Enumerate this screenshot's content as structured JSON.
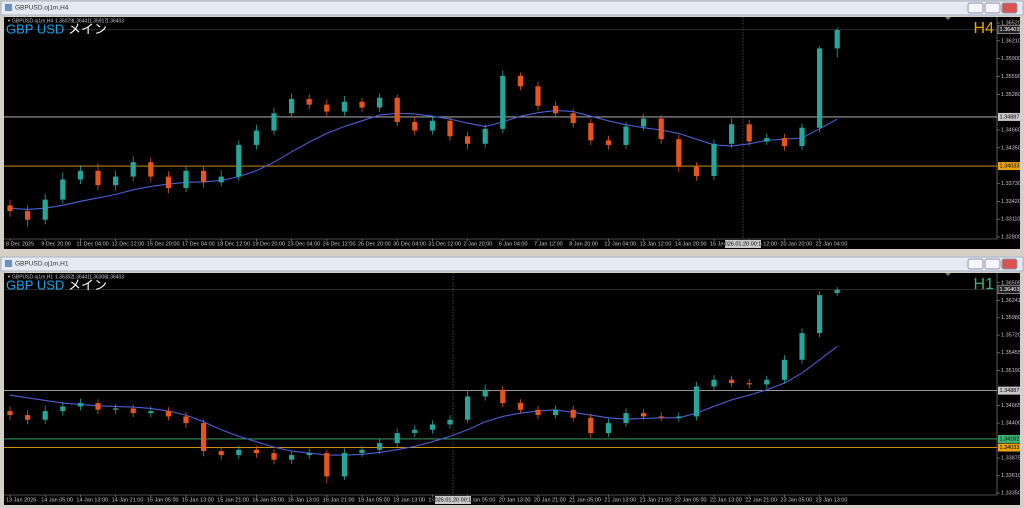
{
  "chart_data": [
    {
      "type": "candlestick",
      "window_title": "GBPUSD.oj1m,H4",
      "overlay_pair": "GBP USD",
      "overlay_label": "メイン",
      "timeframe": "H4",
      "timeframe_color": "#e8a317",
      "up_color": "#26a69a",
      "down_color": "#e8541e",
      "categories": [
        "8 Dec 2025",
        null,
        "9 Dec 20:00",
        null,
        "11 Dec 04:00",
        null,
        "12 Dec 12:00",
        null,
        "15 Dec 20:00",
        null,
        "17 Dec 04:00",
        null,
        "18 Dec 12:00",
        null,
        "19 Dec 20:00",
        null,
        "23 Dec 04:00",
        null,
        "24 Dec 12:00",
        null,
        "26 Dec 20:00",
        null,
        "30 Dec 04:00",
        null,
        "31 Dec 12:00",
        null,
        "2 Jan 20:00",
        null,
        "6 Jan 04:00",
        null,
        "7 Jan 12:00",
        null,
        "8 Jan 20:00",
        null,
        "12 Jan 04:00",
        null,
        "13 Jan 12:00",
        null,
        "14 Jan 20:00",
        null,
        "16 Jan 04:00",
        null,
        "19 Jan 12:00",
        null,
        "20 Jan 20:00",
        null,
        "22 Jan 04:00",
        null
      ],
      "open": [
        1.3335,
        1.3325,
        1.331,
        1.3345,
        1.338,
        1.3395,
        1.337,
        1.3385,
        1.341,
        1.3385,
        1.3365,
        1.3395,
        1.3375,
        1.3385,
        1.344,
        1.3465,
        1.3495,
        1.352,
        1.351,
        1.3498,
        1.3515,
        1.3505,
        1.3522,
        1.348,
        1.3465,
        1.3482,
        1.3455,
        1.3442,
        1.3468,
        1.356,
        1.3542,
        1.3508,
        1.3495,
        1.3478,
        1.3448,
        1.344,
        1.3472,
        1.3486,
        1.345,
        1.3402,
        1.3386,
        1.3442,
        1.3476,
        1.3446,
        1.3452,
        1.3438,
        1.347,
        1.36079
      ],
      "high": [
        1.3345,
        1.3335,
        1.3355,
        1.3392,
        1.3405,
        1.3408,
        1.3395,
        1.342,
        1.3418,
        1.3394,
        1.3404,
        1.3402,
        1.3396,
        1.3448,
        1.3475,
        1.3505,
        1.353,
        1.3528,
        1.3519,
        1.3525,
        1.3522,
        1.353,
        1.3528,
        1.3489,
        1.349,
        1.3489,
        1.3463,
        1.3476,
        1.357,
        1.3566,
        1.355,
        1.3516,
        1.3503,
        1.3485,
        1.3456,
        1.348,
        1.3494,
        1.3492,
        1.3458,
        1.341,
        1.345,
        1.3486,
        1.3484,
        1.346,
        1.3459,
        1.3478,
        1.3612,
        1.36441
      ],
      "low": [
        1.3315,
        1.3298,
        1.3302,
        1.3338,
        1.3372,
        1.3362,
        1.3361,
        1.3377,
        1.3376,
        1.3356,
        1.3358,
        1.3366,
        1.3368,
        1.3378,
        1.3432,
        1.3457,
        1.3488,
        1.3502,
        1.349,
        1.3491,
        1.3497,
        1.3498,
        1.3472,
        1.3457,
        1.3458,
        1.3447,
        1.3433,
        1.3435,
        1.346,
        1.3535,
        1.35,
        1.3487,
        1.347,
        1.344,
        1.3432,
        1.3433,
        1.3465,
        1.3442,
        1.3393,
        1.3378,
        1.3379,
        1.3435,
        1.3438,
        1.344,
        1.343,
        1.3431,
        1.3462,
        1.35917
      ],
      "close": [
        1.3325,
        1.331,
        1.3345,
        1.338,
        1.3395,
        1.337,
        1.3385,
        1.341,
        1.3385,
        1.3365,
        1.3395,
        1.3375,
        1.3385,
        1.344,
        1.3465,
        1.3495,
        1.352,
        1.351,
        1.3498,
        1.3515,
        1.3505,
        1.3522,
        1.348,
        1.3465,
        1.3482,
        1.3455,
        1.3442,
        1.3468,
        1.356,
        1.3542,
        1.3508,
        1.3495,
        1.3478,
        1.3448,
        1.344,
        1.3472,
        1.3486,
        1.345,
        1.3402,
        1.3386,
        1.3442,
        1.3476,
        1.3446,
        1.3452,
        1.3438,
        1.347,
        1.36079,
        1.36403
      ],
      "ma": {
        "color": "#4b5fd6",
        "values": [
          1.333,
          1.3328,
          1.333,
          1.3335,
          1.3342,
          1.3348,
          1.3354,
          1.3362,
          1.3368,
          1.3372,
          1.3375,
          1.3376,
          1.3378,
          1.3385,
          1.3395,
          1.341,
          1.3428,
          1.3445,
          1.346,
          1.3472,
          1.3482,
          1.3492,
          1.3495,
          1.3494,
          1.349,
          1.3485,
          1.3478,
          1.3472,
          1.348,
          1.349,
          1.3496,
          1.35,
          1.3498,
          1.349,
          1.3482,
          1.3475,
          1.347,
          1.3466,
          1.346,
          1.345,
          1.344,
          1.3438,
          1.3442,
          1.3448,
          1.345,
          1.3452,
          1.3468,
          1.3485
        ]
      },
      "hlines": [
        {
          "value": 1.34887,
          "color": "#c8c8c8"
        },
        {
          "value": 1.34033,
          "color": "#e8a317"
        }
      ],
      "cursor_label": "2026.01.20 00:15",
      "ylim": [
        1.32765,
        1.36624
      ],
      "yticks": [
        {
          "value": 1.328,
          "label": "1.32800"
        },
        {
          "value": 1.3311,
          "label": "1.33110"
        },
        {
          "value": 1.3342,
          "label": "1.33420"
        },
        {
          "value": 1.3373,
          "label": "1.33730"
        },
        {
          "value": 1.3435,
          "label": "1.34350"
        },
        {
          "value": 1.3466,
          "label": "1.34660"
        },
        {
          "value": 1.3528,
          "label": "1.35280"
        },
        {
          "value": 1.3559,
          "label": "1.35590"
        },
        {
          "value": 1.359,
          "label": "1.35900"
        },
        {
          "value": 1.3621,
          "label": "1.36210"
        },
        {
          "value": 1.3652,
          "label": "1.36520"
        }
      ]
    },
    {
      "type": "candlestick",
      "window_title": "GBPUSD.oj1m,H1",
      "overlay_pair": "GBP USD",
      "overlay_label": "メイン",
      "timeframe": "H1",
      "timeframe_color": "#3cb371",
      "up_color": "#26a69a",
      "down_color": "#e8541e",
      "categories": [
        "13 Jan 2026",
        null,
        "14 Jan 05:00",
        null,
        "14 Jan 13:00",
        null,
        "14 Jan 21:00",
        null,
        "15 Jan 05:00",
        null,
        "15 Jan 13:00",
        null,
        "15 Jan 21:00",
        null,
        "16 Jan 05:00",
        null,
        "16 Jan 13:00",
        null,
        "16 Jan 21:00",
        null,
        "19 Jan 05:00",
        null,
        "19 Jan 13:00",
        null,
        "19 Jan 21:00",
        null,
        "20 Jan 05:00",
        null,
        "20 Jan 13:00",
        null,
        "20 Jan 21:00",
        null,
        "21 Jan 05:00",
        null,
        "21 Jan 13:00",
        null,
        "21 Jan 21:00",
        null,
        "22 Jan 05:00",
        null,
        "22 Jan 13:00",
        null,
        "22 Jan 21:00",
        null,
        "23 Jan 05:00",
        null,
        "23 Jan 13:00",
        null
      ],
      "open": [
        1.3458,
        1.3452,
        1.3445,
        1.3458,
        1.3465,
        1.347,
        1.346,
        1.3462,
        1.3455,
        1.3458,
        1.345,
        1.344,
        1.3398,
        1.3392,
        1.34,
        1.3395,
        1.3385,
        1.3392,
        1.3395,
        1.336,
        1.3395,
        1.34,
        1.341,
        1.3425,
        1.343,
        1.3438,
        1.3445,
        1.348,
        1.349,
        1.347,
        1.346,
        1.3452,
        1.346,
        1.3448,
        1.3425,
        1.344,
        1.3455,
        1.345,
        1.3448,
        1.345,
        1.3495,
        1.3505,
        1.35,
        1.3498,
        1.3505,
        1.3535,
        1.3575,
        1.36352
      ],
      "high": [
        1.3465,
        1.3459,
        1.3466,
        1.3472,
        1.3477,
        1.3476,
        1.3468,
        1.3468,
        1.3465,
        1.3464,
        1.3457,
        1.3446,
        1.3405,
        1.3406,
        1.3406,
        1.3401,
        1.3398,
        1.3402,
        1.34,
        1.3402,
        1.3406,
        1.3417,
        1.3432,
        1.3437,
        1.3444,
        1.3452,
        1.349,
        1.3498,
        1.3496,
        1.3476,
        1.3466,
        1.3467,
        1.3466,
        1.3454,
        1.3447,
        1.3462,
        1.3461,
        1.3456,
        1.3456,
        1.3502,
        1.3512,
        1.3511,
        1.3506,
        1.3511,
        1.3542,
        1.3582,
        1.3638,
        1.36441
      ],
      "low": [
        1.3445,
        1.3438,
        1.3439,
        1.3451,
        1.3459,
        1.3453,
        1.3454,
        1.3449,
        1.3449,
        1.3444,
        1.3433,
        1.339,
        1.3385,
        1.3386,
        1.3388,
        1.3378,
        1.3379,
        1.3386,
        1.335,
        1.3355,
        1.3389,
        1.3394,
        1.3404,
        1.3419,
        1.3424,
        1.3432,
        1.344,
        1.3474,
        1.3464,
        1.3454,
        1.3446,
        1.3447,
        1.3442,
        1.3418,
        1.3419,
        1.3434,
        1.3445,
        1.3443,
        1.3442,
        1.3444,
        1.3489,
        1.3494,
        1.3492,
        1.3492,
        1.3499,
        1.3529,
        1.3569,
        1.36306
      ],
      "close": [
        1.3452,
        1.3445,
        1.3458,
        1.3465,
        1.347,
        1.346,
        1.3462,
        1.3455,
        1.3458,
        1.345,
        1.344,
        1.3398,
        1.3392,
        1.34,
        1.3395,
        1.3385,
        1.3392,
        1.3395,
        1.336,
        1.3395,
        1.34,
        1.341,
        1.3425,
        1.343,
        1.3438,
        1.3445,
        1.348,
        1.349,
        1.347,
        1.346,
        1.3452,
        1.346,
        1.3448,
        1.3425,
        1.344,
        1.3455,
        1.345,
        1.3448,
        1.345,
        1.3495,
        1.3505,
        1.35,
        1.3498,
        1.3505,
        1.3535,
        1.3575,
        1.3632,
        1.36403
      ],
      "ma": {
        "color": "#4b5fd6",
        "values": [
          1.3482,
          1.3478,
          1.3474,
          1.347,
          1.3468,
          1.3466,
          1.3465,
          1.3464,
          1.3462,
          1.3458,
          1.3452,
          1.3442,
          1.343,
          1.342,
          1.3412,
          1.3404,
          1.3398,
          1.3395,
          1.3392,
          1.3392,
          1.3393,
          1.3396,
          1.34,
          1.3405,
          1.3412,
          1.342,
          1.343,
          1.3442,
          1.345,
          1.3455,
          1.3458,
          1.346,
          1.3456,
          1.3452,
          1.3448,
          1.3446,
          1.3447,
          1.3448,
          1.3448,
          1.3455,
          1.3465,
          1.3475,
          1.3482,
          1.349,
          1.35,
          1.3515,
          1.3535,
          1.3555
        ]
      },
      "hlines": [
        {
          "value": 1.34887,
          "color": "#c8c8c8"
        },
        {
          "value": 1.34162,
          "color": "#3cb371"
        },
        {
          "value": 1.34033,
          "color": "#e8a317"
        }
      ],
      "cursor_label": "2026.01.20 00:15",
      "ylim": [
        1.33321,
        1.36652
      ],
      "yticks": [
        {
          "value": 1.3335,
          "label": "1.33350"
        },
        {
          "value": 1.3361,
          "label": "1.33610"
        },
        {
          "value": 1.33875,
          "label": "1.33875"
        },
        {
          "value": 1.344,
          "label": "1.34400"
        },
        {
          "value": 1.34665,
          "label": "1.34665"
        },
        {
          "value": 1.3519,
          "label": "1.35190"
        },
        {
          "value": 1.35455,
          "label": "1.35455"
        },
        {
          "value": 1.3572,
          "label": "1.35720"
        },
        {
          "value": 1.3598,
          "label": "1.35980"
        },
        {
          "value": 1.36241,
          "label": "1.36241"
        },
        {
          "value": 1.36505,
          "label": "1.36505"
        }
      ]
    }
  ]
}
